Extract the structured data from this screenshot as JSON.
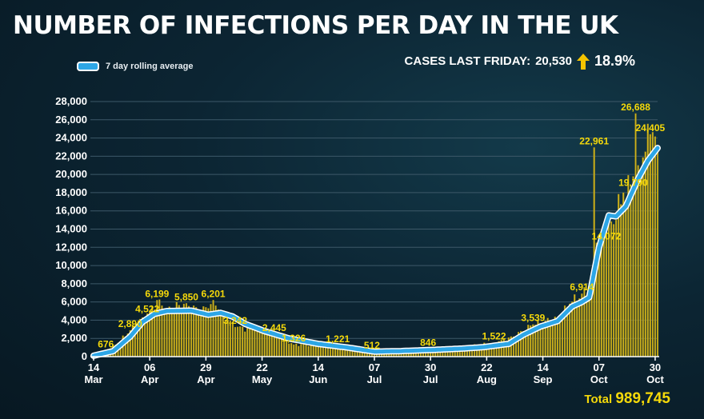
{
  "title": "NUMBER OF INFECTIONS PER DAY IN THE UK",
  "legend": {
    "label": "7 day rolling average",
    "color": "#2da6e6"
  },
  "cases": {
    "label": "CASES LAST FRIDAY:",
    "value": "20,530",
    "change": "18.9%",
    "arrow_icon": "up-arrow-icon",
    "arrow_color": "#f5c400"
  },
  "total": {
    "label": "Total",
    "value": "989,745"
  },
  "colors": {
    "bar": "#cdb21e",
    "bar_stroke": "#8f7b10",
    "annotation": "#f5d90a",
    "grid": "#3d5868",
    "axis": "#ffffff"
  },
  "chart_data": {
    "type": "bar",
    "title": "NUMBER OF INFECTIONS PER DAY IN THE UK",
    "series_bar": "Daily cases",
    "series_line": "7 day rolling average",
    "xlabel": "",
    "ylabel": "",
    "ylim": [
      0,
      28000
    ],
    "yticks": [
      "0",
      "2,000",
      "4,000",
      "6,000",
      "8,000",
      "10,000",
      "12,000",
      "14,000",
      "16,000",
      "18,000",
      "20,000",
      "22,000",
      "24,000",
      "26,000",
      "28,000"
    ],
    "ytick_values": [
      0,
      2000,
      4000,
      6000,
      8000,
      10000,
      12000,
      14000,
      16000,
      18000,
      20000,
      22000,
      24000,
      26000,
      28000
    ],
    "start_date": "14 Mar",
    "day_count": 232,
    "xticks": [
      {
        "day": 0,
        "line1": "14",
        "line2": "Mar"
      },
      {
        "day": 23,
        "line1": "06",
        "line2": "Apr"
      },
      {
        "day": 46,
        "line1": "29",
        "line2": "Apr"
      },
      {
        "day": 69,
        "line1": "22",
        "line2": "May"
      },
      {
        "day": 92,
        "line1": "14",
        "line2": "Jun"
      },
      {
        "day": 115,
        "line1": "07",
        "line2": "Jul"
      },
      {
        "day": 138,
        "line1": "30",
        "line2": "Jul"
      },
      {
        "day": 161,
        "line1": "22",
        "line2": "Aug"
      },
      {
        "day": 184,
        "line1": "14",
        "line2": "Sep"
      },
      {
        "day": 207,
        "line1": "07",
        "line2": "Oct"
      },
      {
        "day": 230,
        "line1": "30",
        "line2": "Oct"
      }
    ],
    "annotations": [
      {
        "day": 5,
        "value": 676,
        "label": "676"
      },
      {
        "day": 15,
        "value": 2890,
        "label": "2,890"
      },
      {
        "day": 22,
        "value": 4522,
        "label": "4,522"
      },
      {
        "day": 26,
        "value": 6199,
        "label": "6,199"
      },
      {
        "day": 38,
        "value": 5850,
        "label": "5,850"
      },
      {
        "day": 49,
        "value": 6201,
        "label": "6,201"
      },
      {
        "day": 58,
        "value": 3242,
        "label": "3,242"
      },
      {
        "day": 74,
        "value": 2445,
        "label": "2,445"
      },
      {
        "day": 82,
        "value": 1326,
        "label": "1,326"
      },
      {
        "day": 100,
        "value": 1221,
        "label": "1,221"
      },
      {
        "day": 114,
        "value": 512,
        "label": "512"
      },
      {
        "day": 137,
        "value": 846,
        "label": "846"
      },
      {
        "day": 164,
        "value": 1522,
        "label": "1,522"
      },
      {
        "day": 180,
        "value": 3539,
        "label": "3,539"
      },
      {
        "day": 200,
        "value": 6914,
        "label": "6,914"
      },
      {
        "day": 205,
        "value": 22961,
        "label": "22,961"
      },
      {
        "day": 210,
        "value": 14072,
        "label": "14,072"
      },
      {
        "day": 221,
        "value": 19790,
        "label": "19,790"
      },
      {
        "day": 222,
        "value": 26688,
        "label": "26,688"
      },
      {
        "day": 228,
        "value": 24405,
        "label": "24,405"
      }
    ],
    "rolling_average_keypoints": [
      {
        "day": 0,
        "value": 100
      },
      {
        "day": 8,
        "value": 600
      },
      {
        "day": 15,
        "value": 2200
      },
      {
        "day": 20,
        "value": 3800
      },
      {
        "day": 25,
        "value": 4700
      },
      {
        "day": 30,
        "value": 5000
      },
      {
        "day": 40,
        "value": 5050
      },
      {
        "day": 47,
        "value": 4600
      },
      {
        "day": 52,
        "value": 4800
      },
      {
        "day": 57,
        "value": 4400
      },
      {
        "day": 62,
        "value": 3600
      },
      {
        "day": 70,
        "value": 2800
      },
      {
        "day": 80,
        "value": 2000
      },
      {
        "day": 92,
        "value": 1400
      },
      {
        "day": 104,
        "value": 1000
      },
      {
        "day": 115,
        "value": 550
      },
      {
        "day": 125,
        "value": 600
      },
      {
        "day": 140,
        "value": 750
      },
      {
        "day": 152,
        "value": 900
      },
      {
        "day": 160,
        "value": 1050
      },
      {
        "day": 170,
        "value": 1400
      },
      {
        "day": 176,
        "value": 2400
      },
      {
        "day": 183,
        "value": 3300
      },
      {
        "day": 190,
        "value": 3900
      },
      {
        "day": 196,
        "value": 5500
      },
      {
        "day": 200,
        "value": 6000
      },
      {
        "day": 203,
        "value": 6500
      },
      {
        "day": 207,
        "value": 12000
      },
      {
        "day": 211,
        "value": 15500
      },
      {
        "day": 214,
        "value": 15400
      },
      {
        "day": 218,
        "value": 16500
      },
      {
        "day": 223,
        "value": 19500
      },
      {
        "day": 227,
        "value": 21500
      },
      {
        "day": 231,
        "value": 22900
      }
    ],
    "bar_keypoints": [
      {
        "day": 0,
        "value": 200
      },
      {
        "day": 5,
        "value": 676
      },
      {
        "day": 10,
        "value": 1500
      },
      {
        "day": 15,
        "value": 2890
      },
      {
        "day": 20,
        "value": 4300
      },
      {
        "day": 23,
        "value": 4900
      },
      {
        "day": 26,
        "value": 6199
      },
      {
        "day": 30,
        "value": 5200
      },
      {
        "day": 38,
        "value": 5850
      },
      {
        "day": 44,
        "value": 4800
      },
      {
        "day": 49,
        "value": 6201
      },
      {
        "day": 53,
        "value": 4700
      },
      {
        "day": 58,
        "value": 3242
      },
      {
        "day": 66,
        "value": 3000
      },
      {
        "day": 74,
        "value": 2445
      },
      {
        "day": 82,
        "value": 1326
      },
      {
        "day": 92,
        "value": 1300
      },
      {
        "day": 100,
        "value": 1221
      },
      {
        "day": 108,
        "value": 800
      },
      {
        "day": 114,
        "value": 512
      },
      {
        "day": 125,
        "value": 650
      },
      {
        "day": 137,
        "value": 846
      },
      {
        "day": 150,
        "value": 950
      },
      {
        "day": 164,
        "value": 1522
      },
      {
        "day": 172,
        "value": 2200
      },
      {
        "day": 180,
        "value": 3539
      },
      {
        "day": 190,
        "value": 4200
      },
      {
        "day": 195,
        "value": 5800
      },
      {
        "day": 200,
        "value": 6914
      },
      {
        "day": 204,
        "value": 7500
      },
      {
        "day": 205,
        "value": 22961
      },
      {
        "day": 206,
        "value": 12500
      },
      {
        "day": 210,
        "value": 14072
      },
      {
        "day": 214,
        "value": 15000
      },
      {
        "day": 217,
        "value": 18000
      },
      {
        "day": 220,
        "value": 17500
      },
      {
        "day": 221,
        "value": 19790
      },
      {
        "day": 222,
        "value": 26688
      },
      {
        "day": 223,
        "value": 21000
      },
      {
        "day": 226,
        "value": 22500
      },
      {
        "day": 228,
        "value": 24405
      },
      {
        "day": 231,
        "value": 23000
      }
    ]
  }
}
